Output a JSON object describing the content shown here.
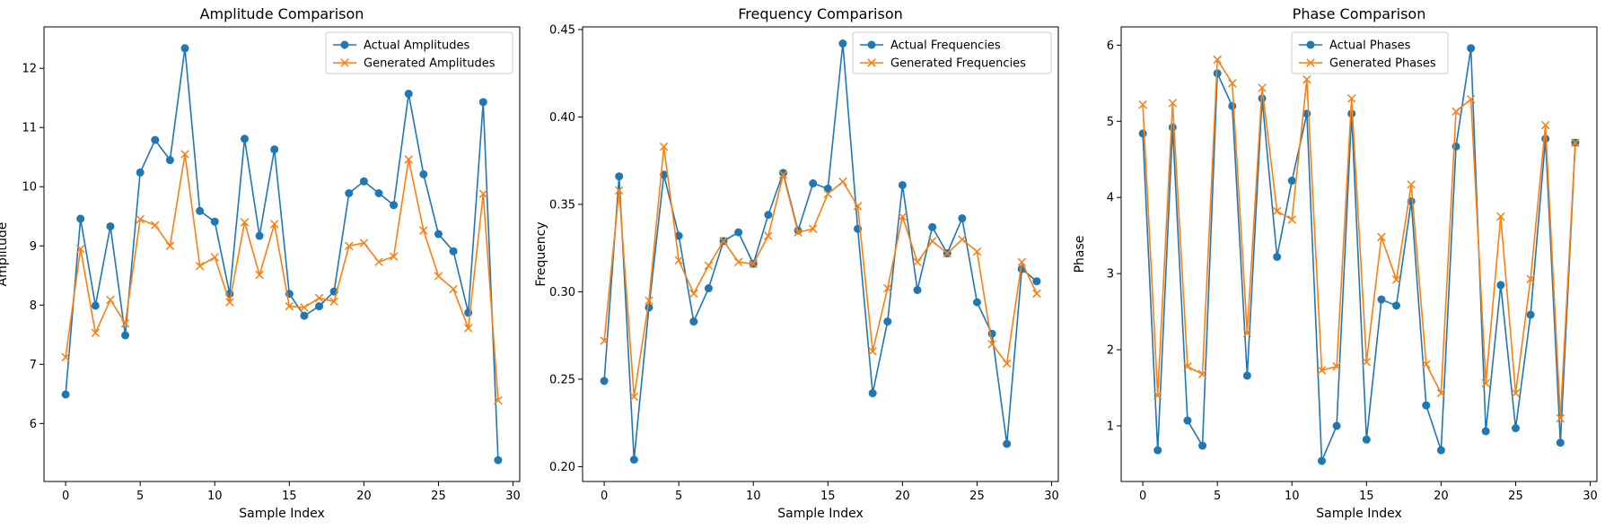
{
  "colors": {
    "actual": "#1f77b4",
    "generated": "#ff7f0e",
    "axes": "#000000",
    "legend_border": "#cccccc",
    "background": "#ffffff"
  },
  "chart_data": [
    {
      "type": "line",
      "title": "Amplitude Comparison",
      "xlabel": "Sample Index",
      "ylabel": "Amplitude",
      "xlim": [
        -1.45,
        30.45
      ],
      "ylim": [
        5.02,
        12.7
      ],
      "xticks": [
        0,
        5,
        10,
        15,
        20,
        25,
        30
      ],
      "yticks": [
        6,
        7,
        8,
        9,
        10,
        11,
        12
      ],
      "ytick_labels": [
        "6",
        "7",
        "8",
        "9",
        "10",
        "11",
        "12"
      ],
      "grid": false,
      "legend_position": "top-right",
      "x": [
        0,
        1,
        2,
        3,
        4,
        5,
        6,
        7,
        8,
        9,
        10,
        11,
        12,
        13,
        14,
        15,
        16,
        17,
        18,
        19,
        20,
        21,
        22,
        23,
        24,
        25,
        26,
        27,
        28,
        29
      ],
      "series": [
        {
          "name": "Actual Amplitudes",
          "marker": "circle",
          "values": [
            6.49,
            9.46,
            7.99,
            9.33,
            7.49,
            10.24,
            10.79,
            10.45,
            12.34,
            9.59,
            9.41,
            8.19,
            10.81,
            9.17,
            10.63,
            8.19,
            7.82,
            7.98,
            8.23,
            9.89,
            10.09,
            9.89,
            9.69,
            11.57,
            10.21,
            9.2,
            8.91,
            7.87,
            11.43,
            5.38
          ]
        },
        {
          "name": "Generated Amplitudes",
          "marker": "x",
          "values": [
            7.12,
            8.95,
            7.53,
            8.09,
            7.69,
            9.45,
            9.35,
            9.0,
            10.55,
            8.66,
            8.81,
            8.05,
            9.4,
            8.51,
            9.37,
            7.98,
            7.96,
            8.12,
            8.06,
            9.0,
            9.05,
            8.73,
            8.82,
            10.46,
            9.26,
            8.49,
            8.27,
            7.61,
            9.88,
            6.39
          ]
        }
      ]
    },
    {
      "type": "line",
      "title": "Frequency Comparison",
      "xlabel": "Sample Index",
      "ylabel": "Frequency",
      "xlim": [
        -1.45,
        30.45
      ],
      "ylim": [
        0.1915,
        0.4515
      ],
      "xticks": [
        0,
        5,
        10,
        15,
        20,
        25,
        30
      ],
      "yticks": [
        0.2,
        0.25,
        0.3,
        0.35,
        0.4,
        0.45
      ],
      "ytick_labels": [
        "0.20",
        "0.25",
        "0.30",
        "0.35",
        "0.40",
        "0.45"
      ],
      "grid": false,
      "legend_position": "top-right",
      "x": [
        0,
        1,
        2,
        3,
        4,
        5,
        6,
        7,
        8,
        9,
        10,
        11,
        12,
        13,
        14,
        15,
        16,
        17,
        18,
        19,
        20,
        21,
        22,
        23,
        24,
        25,
        26,
        27,
        28,
        29
      ],
      "series": [
        {
          "name": "Actual Frequencies",
          "marker": "circle",
          "values": [
            0.249,
            0.366,
            0.204,
            0.291,
            0.367,
            0.332,
            0.283,
            0.302,
            0.329,
            0.334,
            0.316,
            0.344,
            0.368,
            0.335,
            0.362,
            0.359,
            0.442,
            0.336,
            0.242,
            0.283,
            0.361,
            0.301,
            0.337,
            0.322,
            0.342,
            0.294,
            0.276,
            0.213,
            0.313,
            0.306
          ]
        },
        {
          "name": "Generated Frequencies",
          "marker": "x",
          "values": [
            0.272,
            0.358,
            0.24,
            0.295,
            0.383,
            0.318,
            0.299,
            0.315,
            0.329,
            0.317,
            0.316,
            0.332,
            0.367,
            0.334,
            0.336,
            0.356,
            0.363,
            0.349,
            0.266,
            0.302,
            0.343,
            0.317,
            0.329,
            0.322,
            0.33,
            0.323,
            0.27,
            0.259,
            0.317,
            0.299
          ]
        }
      ]
    },
    {
      "type": "line",
      "title": "Phase Comparison",
      "xlabel": "Sample Index",
      "ylabel": "Phase",
      "xlim": [
        -1.45,
        30.45
      ],
      "ylim": [
        0.27,
        6.24
      ],
      "xticks": [
        0,
        5,
        10,
        15,
        20,
        25,
        30
      ],
      "yticks": [
        1,
        2,
        3,
        4,
        5,
        6
      ],
      "ytick_labels": [
        "1",
        "2",
        "3",
        "4",
        "5",
        "6"
      ],
      "grid": false,
      "legend_position": "top-center",
      "x": [
        0,
        1,
        2,
        3,
        4,
        5,
        6,
        7,
        8,
        9,
        10,
        11,
        12,
        13,
        14,
        15,
        16,
        17,
        18,
        19,
        20,
        21,
        22,
        23,
        24,
        25,
        26,
        27,
        28,
        29
      ],
      "series": [
        {
          "name": "Actual Phases",
          "marker": "circle",
          "values": [
            4.84,
            0.68,
            4.92,
            1.07,
            0.74,
            5.63,
            5.2,
            1.66,
            5.3,
            3.22,
            4.22,
            5.1,
            0.54,
            1.0,
            5.1,
            0.82,
            2.66,
            2.58,
            3.95,
            1.27,
            0.68,
            4.67,
            5.96,
            0.93,
            2.85,
            0.97,
            2.46,
            4.77,
            0.78,
            4.72
          ]
        },
        {
          "name": "Generated Phases",
          "marker": "x",
          "values": [
            5.22,
            1.4,
            5.24,
            1.78,
            1.68,
            5.81,
            5.5,
            2.22,
            5.44,
            3.82,
            3.71,
            5.55,
            1.73,
            1.78,
            5.3,
            1.84,
            3.48,
            2.92,
            4.17,
            1.81,
            1.43,
            5.13,
            5.29,
            1.56,
            3.75,
            1.43,
            2.93,
            4.95,
            1.1,
            4.72
          ]
        }
      ]
    }
  ]
}
